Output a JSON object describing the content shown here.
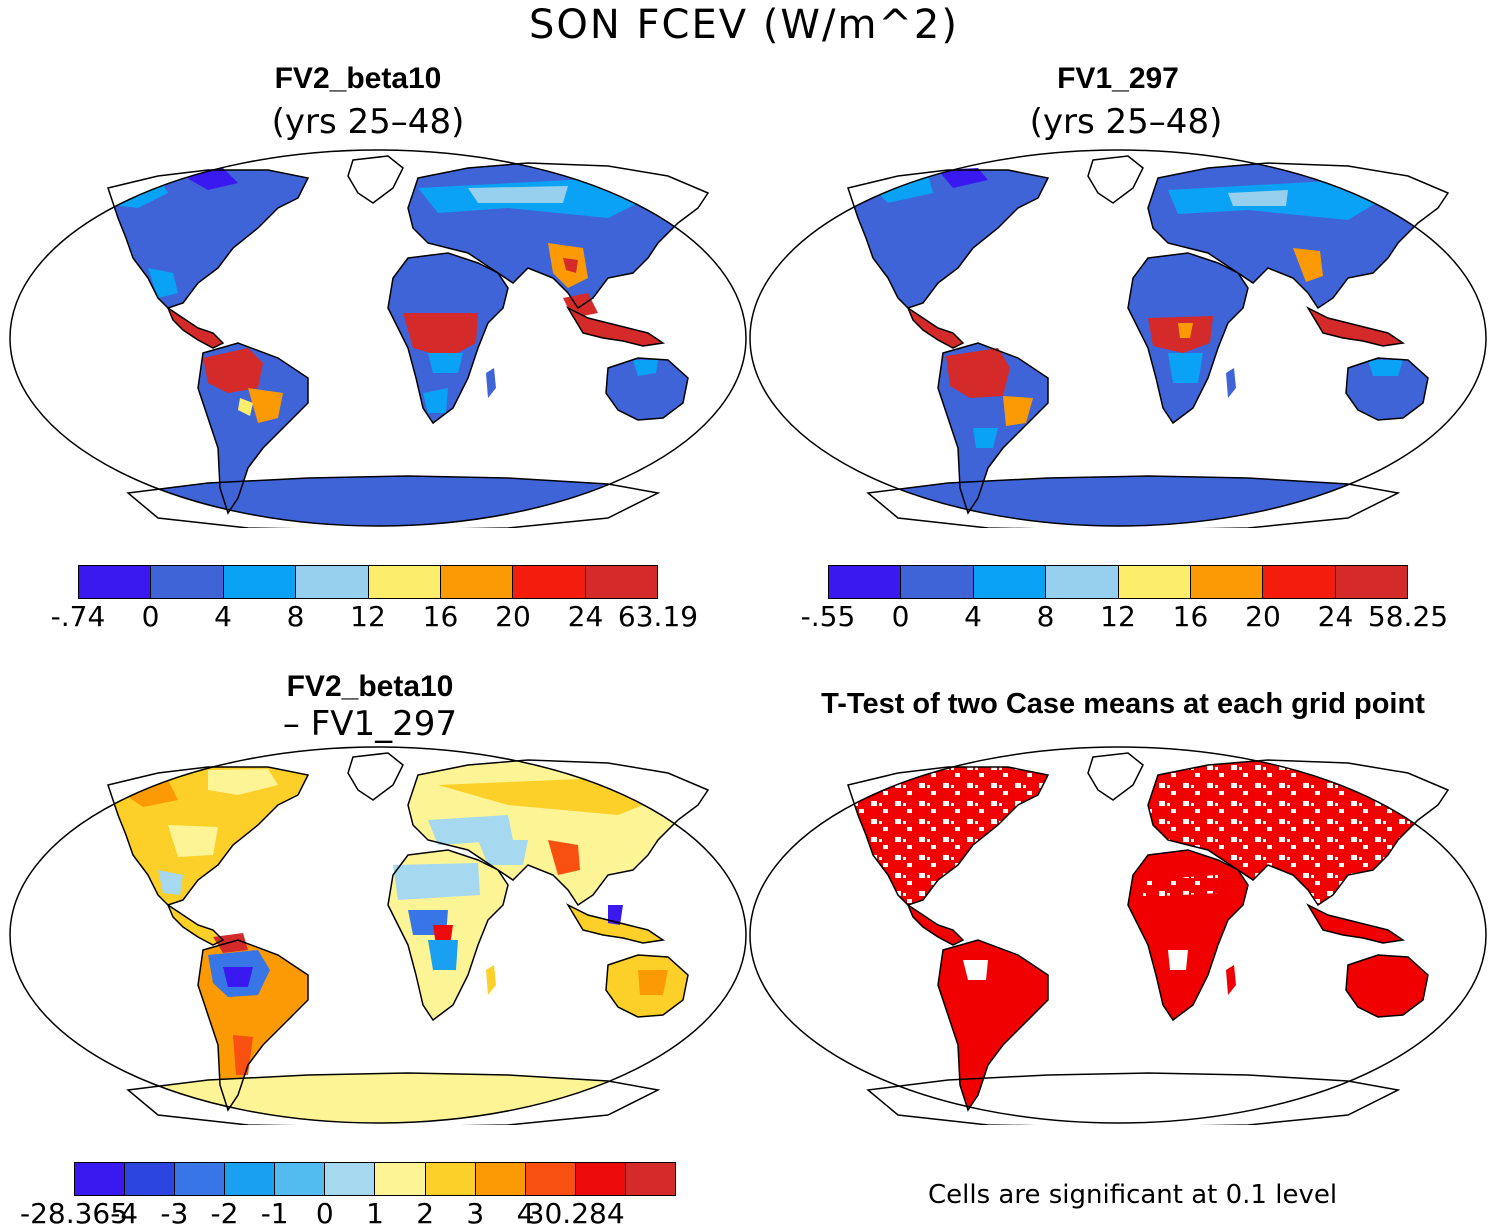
{
  "title": "SON FCEV (W/m^2)",
  "panels": [
    {
      "title": "FV2_beta10",
      "subtitle": "(yrs 25–48)"
    },
    {
      "title": "FV1_297",
      "subtitle": "(yrs 25–48)"
    },
    {
      "title": "FV2_beta10",
      "subtitle": "– FV1_297"
    },
    {
      "title": "T-Test of two Case means at each grid point",
      "subtitle": ""
    }
  ],
  "colorbars": {
    "a": {
      "labels": [
        "-.74",
        "0",
        "4",
        "8",
        "12",
        "16",
        "20",
        "24",
        "63.19"
      ],
      "colors": [
        "#3a18f0",
        "#3f64d8",
        "#0aa2f5",
        "#96d0ee",
        "#fcee6a",
        "#fb9a05",
        "#f41c0c",
        "#d42a2a"
      ]
    },
    "b": {
      "labels": [
        "-.55",
        "0",
        "4",
        "8",
        "12",
        "16",
        "20",
        "24",
        "58.25"
      ],
      "colors": [
        "#3a18f0",
        "#3f64d8",
        "#0aa2f5",
        "#96d0ee",
        "#fcee6a",
        "#fb9a05",
        "#f41c0c",
        "#d42a2a"
      ]
    },
    "diff": {
      "labels": [
        "-28.365",
        "-4",
        "-3",
        "-2",
        "-1",
        "0",
        "1",
        "2",
        "3",
        "4",
        "30.284"
      ],
      "colors": [
        "#3a18f0",
        "#2c44e0",
        "#3876e8",
        "#1aa0f0",
        "#52bcf0",
        "#a6d8f0",
        "#fdf496",
        "#fcd028",
        "#fb9a05",
        "#f85010",
        "#ec0a0a",
        "#d42a2a"
      ]
    }
  },
  "ttest_note": "Cells are significant at 0.1 level"
}
